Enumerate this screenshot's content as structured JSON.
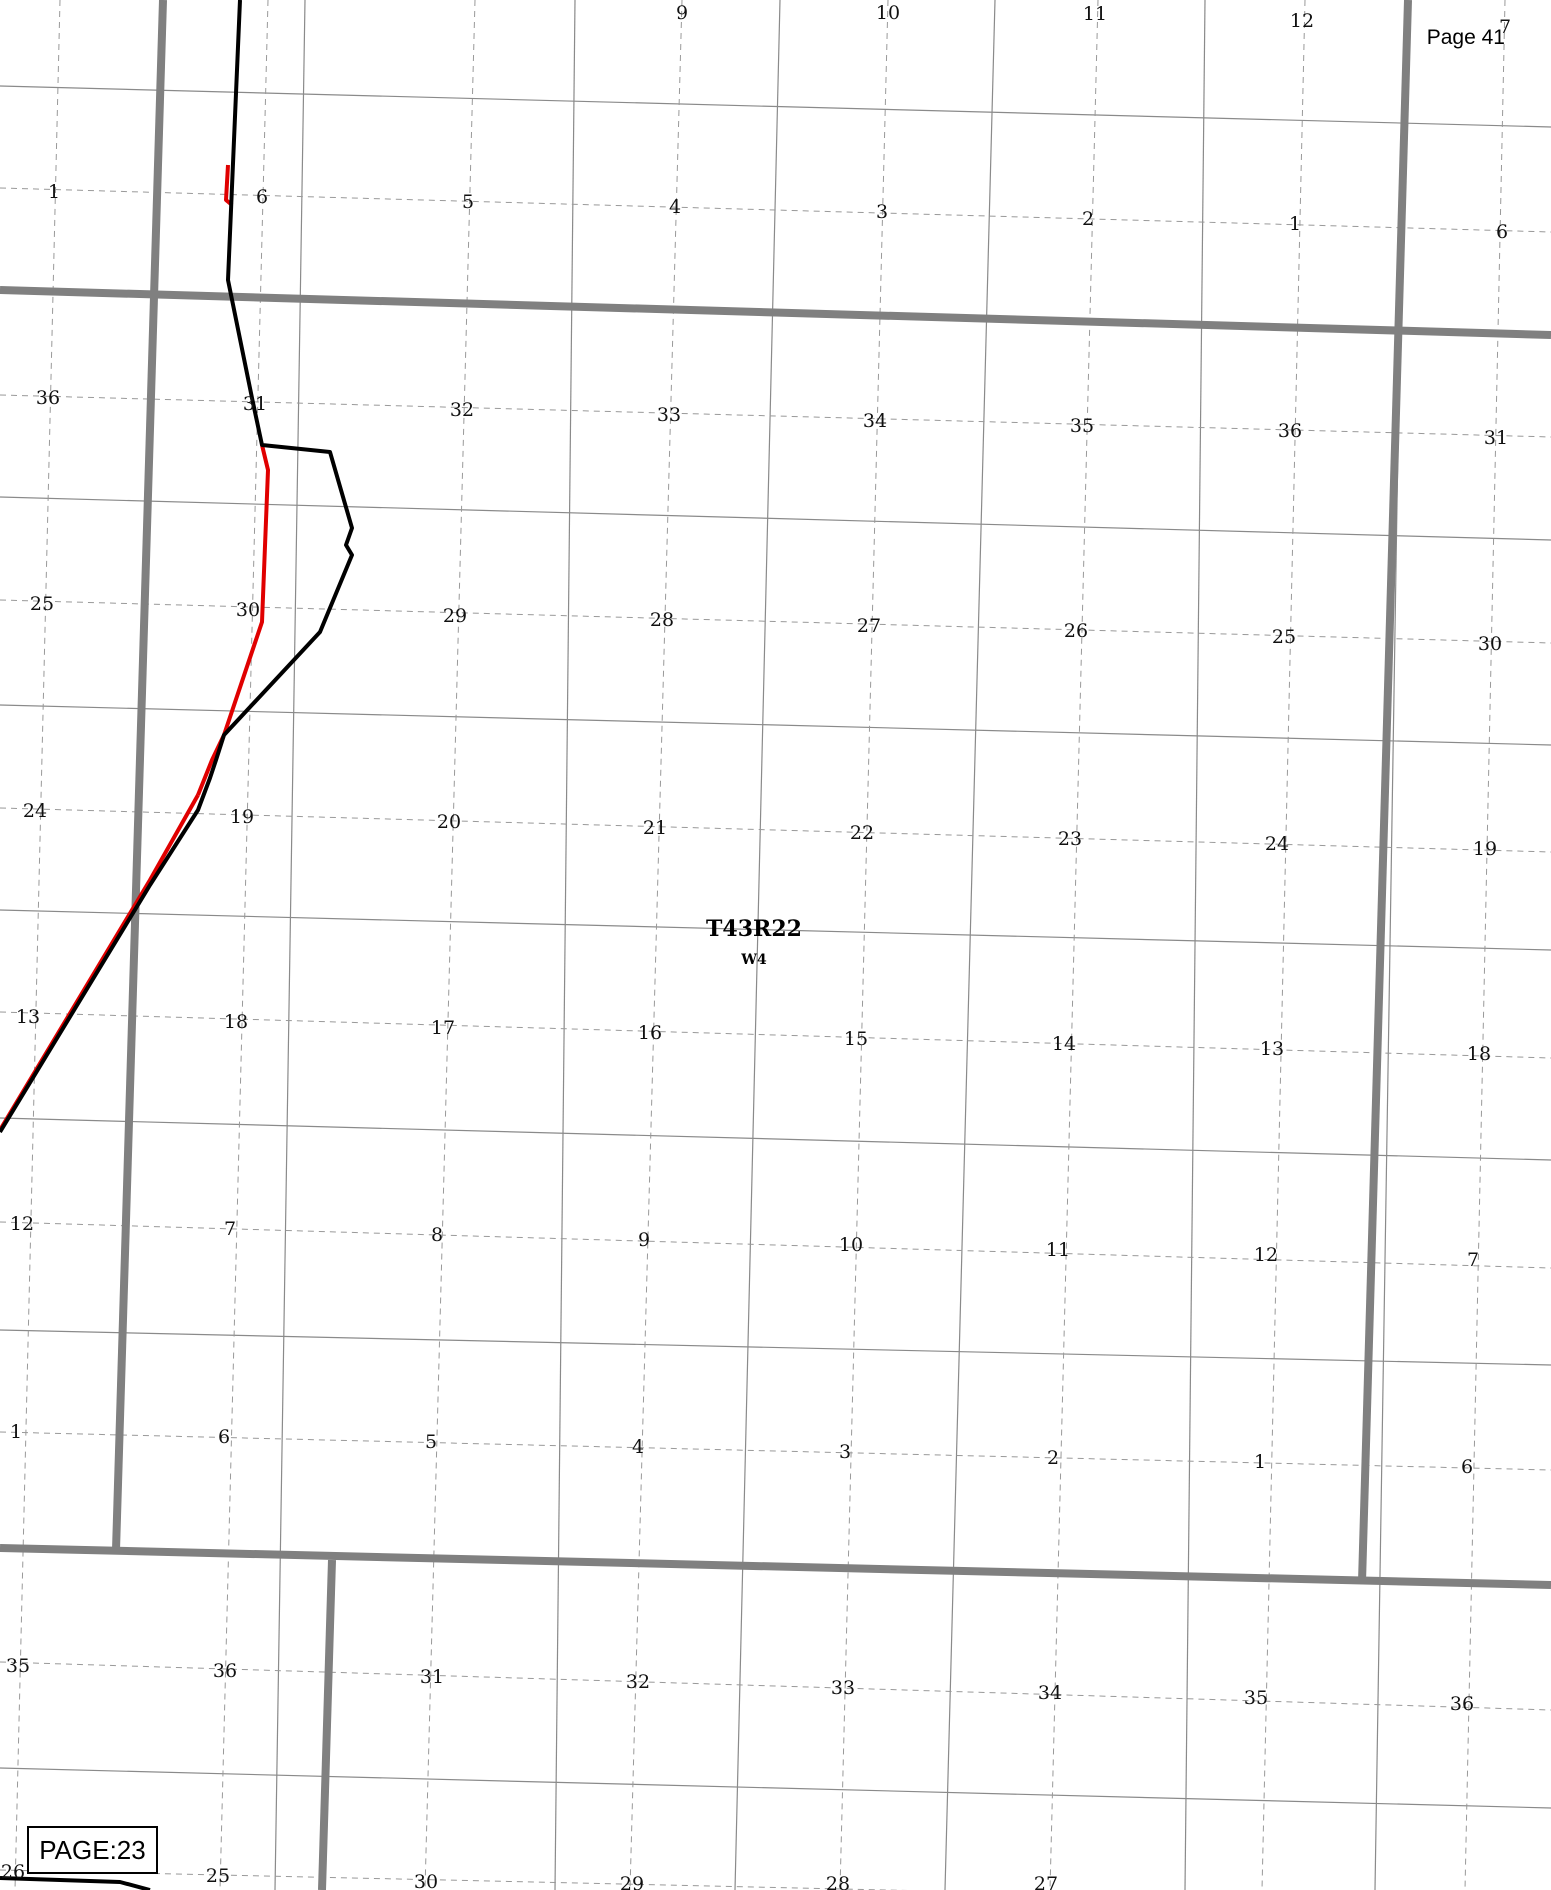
{
  "map": {
    "page_label": "Page 41",
    "page_box": "PAGE:23",
    "township": {
      "label": "T43R22",
      "meridian": "W4"
    },
    "colors": {
      "township_line": "#808080",
      "quarter_line": "#999999",
      "section_line": "#8a8a8a",
      "boundary_black": "#000000",
      "boundary_red": "#e00000"
    },
    "section_labels": {
      "row_top": [
        "9",
        "10",
        "11",
        "12",
        "7"
      ],
      "row_a": [
        "1",
        "6",
        "5",
        "4",
        "3",
        "2",
        "1",
        "6"
      ],
      "row_b": [
        "36",
        "31",
        "32",
        "33",
        "34",
        "35",
        "36",
        "31"
      ],
      "row_c": [
        "25",
        "30",
        "29",
        "28",
        "27",
        "26",
        "25",
        "30"
      ],
      "row_d": [
        "24",
        "19",
        "20",
        "21",
        "22",
        "23",
        "24",
        "19"
      ],
      "row_e": [
        "13",
        "18",
        "17",
        "16",
        "15",
        "14",
        "13",
        "18"
      ],
      "row_f": [
        "12",
        "7",
        "8",
        "9",
        "10",
        "11",
        "12",
        "7"
      ],
      "row_g": [
        "1",
        "6",
        "5",
        "4",
        "3",
        "2",
        "1",
        "6"
      ],
      "row_h": [
        "35",
        "36",
        "31",
        "32",
        "33",
        "34",
        "35",
        "36"
      ],
      "row_i": [
        "26",
        "25",
        "30",
        "29",
        "28",
        "27"
      ]
    }
  }
}
